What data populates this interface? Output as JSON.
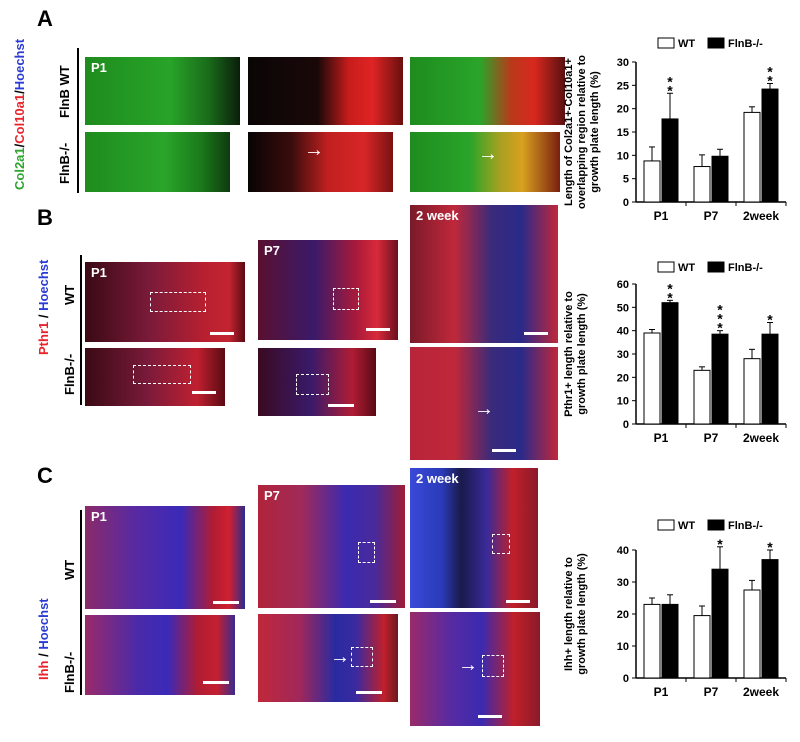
{
  "panels": {
    "A": {
      "letter": "A",
      "stain": {
        "green": "Col2a1",
        "sep1": "/",
        "red": "Col10a1",
        "sep2": "/",
        "blue": "Hoechst"
      },
      "rows": [
        "FlnB WT",
        "FlnB-/-"
      ],
      "image_tag": "P1"
    },
    "B": {
      "letter": "B",
      "stain": {
        "red": "Pthr1",
        "sep": " / ",
        "blue": "Hoechst"
      },
      "rows": [
        "WT",
        "FlnB-/-"
      ],
      "tags": [
        "P1",
        "P7",
        "2 week"
      ]
    },
    "C": {
      "letter": "C",
      "stain": {
        "red": "Ihh",
        "sep": " / ",
        "blue": "Hoechst"
      },
      "rows": [
        "WT",
        "FlnB-/-"
      ],
      "tags": [
        "P1",
        "P7",
        "2 week"
      ]
    }
  },
  "colors": {
    "wt": "#ffffff",
    "ko": "#000000",
    "green_stain": "#2fa52f",
    "red_stain": "#e8232c",
    "blue_stain": "#2a3bd6"
  },
  "chart_data": [
    {
      "id": "A",
      "type": "bar",
      "categories": [
        "P1",
        "P7",
        "2week"
      ],
      "series": [
        {
          "name": "WT",
          "values": [
            8.8,
            7.6,
            19.2
          ],
          "errors": [
            3.0,
            2.5,
            1.2
          ]
        },
        {
          "name": "FlnB-/-",
          "values": [
            17.8,
            9.8,
            24.2
          ],
          "errors": [
            5.5,
            1.5,
            1.2
          ]
        }
      ],
      "significance": [
        "**",
        "",
        "**"
      ],
      "ylabel": [
        "Length of Col2a1+-Col10a1+",
        "overlapping region relative to",
        "growth plate length (%)"
      ],
      "ylim": [
        0,
        30
      ],
      "yticks": [
        0,
        5,
        10,
        15,
        20,
        25,
        30
      ],
      "legend_position": "top"
    },
    {
      "id": "B",
      "type": "bar",
      "categories": [
        "P1",
        "P7",
        "2week"
      ],
      "series": [
        {
          "name": "WT",
          "values": [
            39,
            23,
            28
          ],
          "errors": [
            1.5,
            1.5,
            4
          ]
        },
        {
          "name": "FlnB-/-",
          "values": [
            52,
            38.5,
            38.5
          ],
          "errors": [
            1.0,
            1.5,
            5
          ]
        }
      ],
      "significance": [
        "**",
        "***",
        "*"
      ],
      "ylabel": [
        "Pthr1+ length relative to",
        "growth plate length (%)"
      ],
      "ylim": [
        0,
        60
      ],
      "yticks": [
        0,
        10,
        20,
        30,
        40,
        50,
        60
      ],
      "legend_position": "top"
    },
    {
      "id": "C",
      "type": "bar",
      "categories": [
        "P1",
        "P7",
        "2week"
      ],
      "series": [
        {
          "name": "WT",
          "values": [
            23,
            19.5,
            27.5
          ],
          "errors": [
            2,
            3,
            3
          ]
        },
        {
          "name": "FlnB-/-",
          "values": [
            23,
            34,
            37
          ],
          "errors": [
            3,
            7,
            3
          ]
        }
      ],
      "significance": [
        "",
        "*",
        "*"
      ],
      "ylabel": [
        "Ihh+ length relative to",
        "growth plate length (%)"
      ],
      "ylim": [
        0,
        40
      ],
      "yticks": [
        0,
        10,
        20,
        30,
        40
      ],
      "legend_position": "top"
    }
  ]
}
